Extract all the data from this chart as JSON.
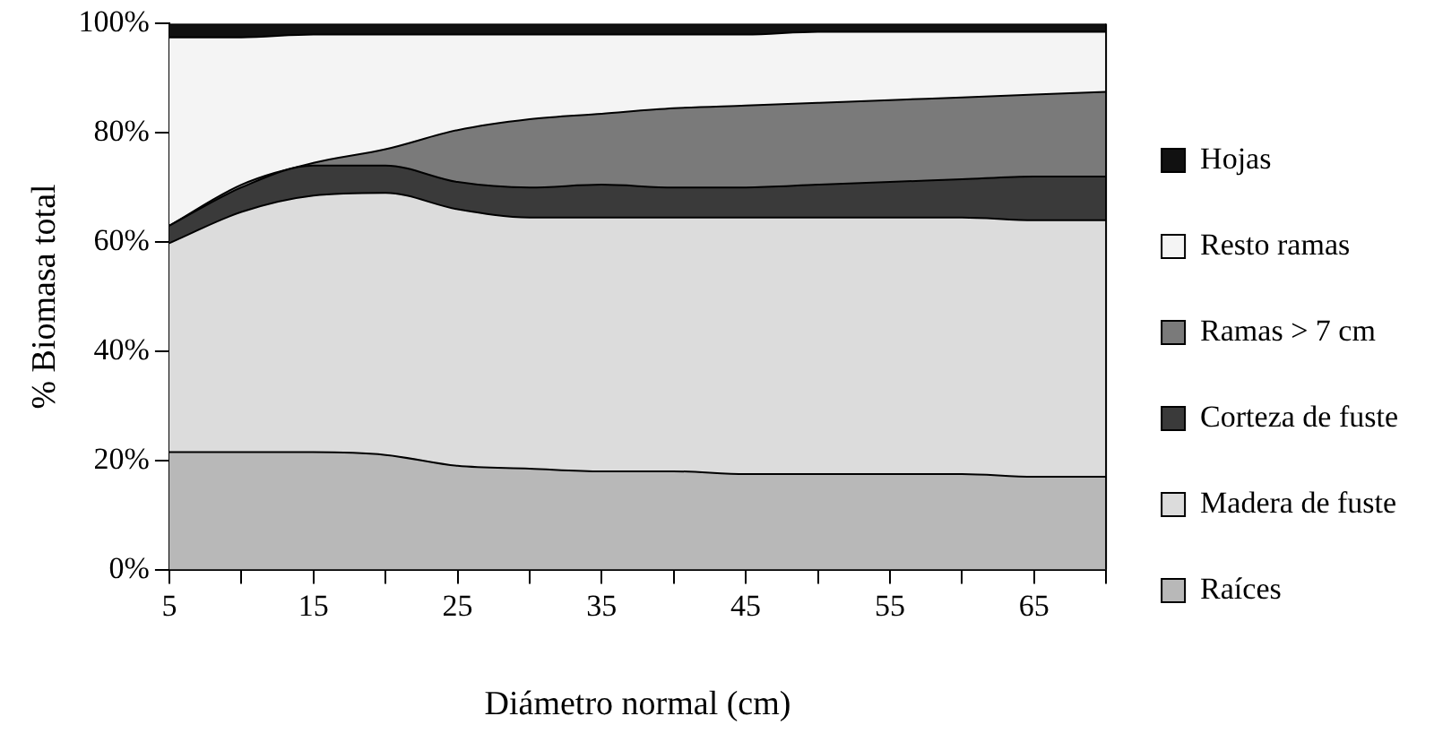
{
  "chart_data": {
    "type": "area",
    "stacked": true,
    "xlabel": "Diámetro normal (cm)",
    "ylabel": "% Biomasa total",
    "x": [
      5,
      10,
      15,
      20,
      25,
      30,
      35,
      40,
      45,
      50,
      55,
      60,
      65,
      70
    ],
    "xlim": [
      5,
      70
    ],
    "xticks": [
      5,
      {
        "value": 10,
        "label": null
      },
      15,
      {
        "value": 20,
        "label": null
      },
      25,
      {
        "value": 30,
        "label": null
      },
      35,
      {
        "value": 40,
        "label": null
      },
      45,
      {
        "value": 50,
        "label": null
      },
      55,
      {
        "value": 60,
        "label": null
      },
      65,
      {
        "value": 70,
        "label": null
      }
    ],
    "ylim": [
      0,
      100
    ],
    "yticks": [
      {
        "value": 0,
        "label": "0%"
      },
      {
        "value": 20,
        "label": "20%"
      },
      {
        "value": 40,
        "label": "40%"
      },
      {
        "value": 60,
        "label": "60%"
      },
      {
        "value": 80,
        "label": "80%"
      },
      {
        "value": 100,
        "label": "100%"
      }
    ],
    "grid": false,
    "legend": "right",
    "series": [
      {
        "name": "Raíces",
        "color": "#b8b8b8",
        "values": [
          21.5,
          21.5,
          21.5,
          21,
          19,
          18.5,
          18,
          18,
          17.5,
          17.5,
          17.5,
          17.5,
          17,
          17
        ]
      },
      {
        "name": "Madera de fuste",
        "color": "#dcdcdc",
        "values": [
          38.3,
          44,
          47,
          48,
          47,
          46,
          46.5,
          46.5,
          47,
          47,
          47,
          47,
          47,
          47
        ]
      },
      {
        "name": "Corteza de fuste",
        "color": "#3a3a3a",
        "values": [
          3.2,
          4.5,
          5.5,
          5,
          5,
          5.5,
          6,
          5.5,
          5.5,
          6,
          6.5,
          7,
          8,
          8
        ]
      },
      {
        "name": "Ramas > 7 cm",
        "color": "#7a7a7a",
        "values": [
          0,
          0.5,
          0.5,
          3,
          9.5,
          12.5,
          13,
          14.5,
          15,
          15,
          15,
          15,
          15,
          15.5
        ]
      },
      {
        "name": "Resto ramas",
        "color": "#f4f4f4",
        "values": [
          34.5,
          27,
          23.5,
          21,
          17.5,
          15.5,
          14.5,
          13.5,
          13,
          13,
          12.5,
          12,
          11.5,
          11
        ]
      },
      {
        "name": "Hojas",
        "color": "#111111",
        "values": [
          2.5,
          2.5,
          2,
          2,
          2,
          2,
          2,
          2,
          2,
          1.5,
          1.5,
          1.5,
          1.5,
          1.5
        ]
      }
    ]
  }
}
